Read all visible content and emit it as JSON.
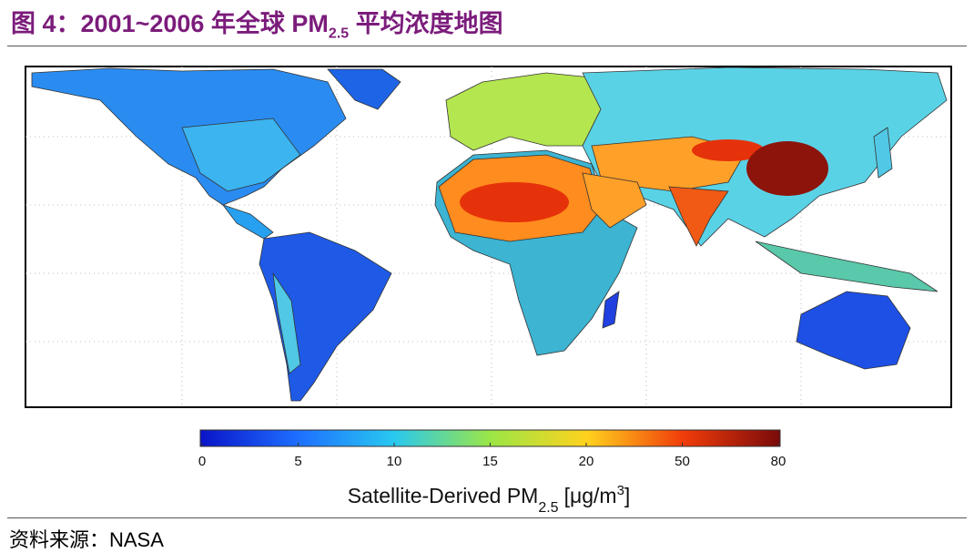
{
  "header": {
    "title_prefix": "图 4：2001~2006 年全球 PM",
    "title_subscript": "2.5",
    "title_suffix": "平均浓度地图"
  },
  "colorbar": {
    "ticks": [
      0,
      5,
      10,
      15,
      20,
      50,
      80
    ],
    "colors": [
      "#0a14c8",
      "#1e6eff",
      "#28c8f0",
      "#9be646",
      "#ffd21e",
      "#f03c0a",
      "#7a0a0a"
    ],
    "label": "Satellite-Derived PM",
    "label_subscript": "2.5",
    "unit_prefix": "[μg/m",
    "unit_superscript": "3",
    "unit_suffix": "]"
  },
  "footer": {
    "source": "资料来源：NASA"
  }
}
